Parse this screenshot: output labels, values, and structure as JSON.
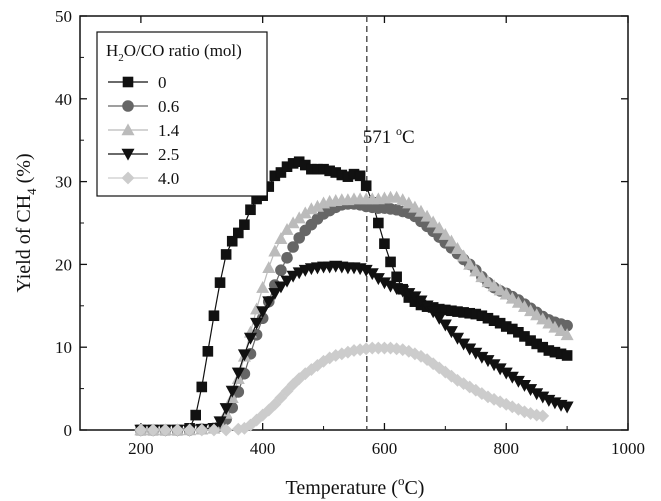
{
  "chart_data": {
    "type": "scatter",
    "xlabel_main": "Temperature (",
    "xlabel_sup": "o",
    "xlabel_tail": "C)",
    "ylabel_main": "Yield of CH",
    "ylabel_sub": "4",
    "ylabel_tail": " (%)",
    "xlim": [
      100,
      1000
    ],
    "ylim": [
      0,
      50
    ],
    "x_ticks": [
      200,
      400,
      600,
      800,
      1000
    ],
    "y_ticks": [
      0,
      10,
      20,
      30,
      40,
      50
    ],
    "grid": false,
    "legend_position": "top-left",
    "legend_title_main": "H",
    "legend_title_sub": "2",
    "legend_title_tail": "O/CO ratio (mol)",
    "annotation": {
      "x": 571,
      "text_main": "571 ",
      "text_sup": "o",
      "text_tail": "C"
    },
    "series": [
      {
        "name": "0",
        "marker": "square",
        "color": "#111111",
        "x": [
          200,
          220,
          240,
          260,
          280,
          290,
          300,
          310,
          320,
          330,
          340,
          350,
          360,
          370,
          380,
          390,
          400,
          410,
          420,
          430,
          440,
          450,
          460,
          470,
          480,
          490,
          500,
          510,
          520,
          530,
          540,
          550,
          560,
          570,
          580,
          590,
          600,
          610,
          620,
          630,
          640,
          650,
          660,
          670,
          680,
          690,
          700,
          710,
          720,
          730,
          740,
          750,
          760,
          770,
          780,
          790,
          800,
          810,
          820,
          830,
          840,
          850,
          860,
          870,
          880,
          890,
          900
        ],
        "y": [
          0,
          0,
          0,
          0,
          0.2,
          1.8,
          5.2,
          9.5,
          13.8,
          17.8,
          21.2,
          22.8,
          23.8,
          24.8,
          26.6,
          27.9,
          28.3,
          29.4,
          30.7,
          31.1,
          31.8,
          32.2,
          32.4,
          32.0,
          31.5,
          31.5,
          31.5,
          31.3,
          31.1,
          30.8,
          30.6,
          30.9,
          30.7,
          29.5,
          27.5,
          25.0,
          22.5,
          20.3,
          18.5,
          17.0,
          16.0,
          15.5,
          15.1,
          14.9,
          14.8,
          14.6,
          14.5,
          14.4,
          14.3,
          14.2,
          14.1,
          14.0,
          13.8,
          13.5,
          13.2,
          12.9,
          12.5,
          12.2,
          11.8,
          11.3,
          10.8,
          10.4,
          10.0,
          9.6,
          9.4,
          9.2,
          9.0
        ]
      },
      {
        "name": "0.6",
        "marker": "circle",
        "color": "#666666",
        "x": [
          200,
          220,
          240,
          260,
          280,
          300,
          320,
          330,
          340,
          350,
          360,
          370,
          380,
          390,
          400,
          410,
          420,
          430,
          440,
          450,
          460,
          470,
          480,
          490,
          500,
          510,
          520,
          530,
          540,
          550,
          560,
          570,
          580,
          590,
          600,
          610,
          620,
          630,
          640,
          650,
          660,
          670,
          680,
          690,
          700,
          710,
          720,
          730,
          740,
          750,
          760,
          770,
          780,
          790,
          800,
          810,
          820,
          830,
          840,
          850,
          860,
          870,
          880,
          890,
          900
        ],
        "y": [
          0,
          0,
          0,
          0,
          0,
          0.1,
          0.2,
          0.5,
          1.3,
          2.7,
          4.6,
          6.8,
          9.2,
          11.5,
          13.5,
          15.5,
          17.5,
          19.3,
          20.8,
          22.1,
          23.2,
          24.1,
          24.8,
          25.5,
          26.1,
          26.5,
          26.9,
          27.2,
          27.3,
          27.3,
          27.2,
          27.0,
          26.9,
          26.8,
          26.8,
          26.7,
          26.6,
          26.4,
          26.2,
          25.8,
          25.2,
          24.6,
          24.0,
          23.3,
          22.6,
          22.0,
          21.3,
          20.6,
          20.0,
          19.3,
          18.5,
          17.8,
          17.2,
          16.8,
          16.5,
          16.1,
          15.7,
          15.2,
          14.7,
          14.2,
          13.7,
          13.3,
          13.0,
          12.8,
          12.6
        ]
      },
      {
        "name": "1.4",
        "marker": "triangle-up",
        "color": "#bbbbbb",
        "x": [
          200,
          220,
          240,
          260,
          280,
          300,
          320,
          330,
          340,
          350,
          360,
          370,
          380,
          390,
          400,
          410,
          420,
          430,
          440,
          450,
          460,
          470,
          480,
          490,
          500,
          510,
          520,
          530,
          540,
          550,
          560,
          570,
          580,
          590,
          600,
          610,
          620,
          630,
          640,
          650,
          660,
          670,
          680,
          690,
          700,
          710,
          720,
          730,
          740,
          750,
          760,
          770,
          780,
          790,
          800,
          810,
          820,
          830,
          840,
          850,
          860,
          870,
          880,
          890,
          900
        ],
        "y": [
          0,
          0,
          0,
          0,
          0,
          0.1,
          0.2,
          0.8,
          2.0,
          3.9,
          6.2,
          8.9,
          11.8,
          14.6,
          17.2,
          19.6,
          21.6,
          23.1,
          24.2,
          25.0,
          25.6,
          26.2,
          26.7,
          27.0,
          27.4,
          27.6,
          27.7,
          27.8,
          27.8,
          27.9,
          27.9,
          27.9,
          27.9,
          27.9,
          28.0,
          28.1,
          28.1,
          27.8,
          27.4,
          26.9,
          26.4,
          25.8,
          25.1,
          24.4,
          23.6,
          22.8,
          21.9,
          21.0,
          20.0,
          19.2,
          18.5,
          17.9,
          17.4,
          16.9,
          16.4,
          15.9,
          15.4,
          14.9,
          14.4,
          13.9,
          13.4,
          12.9,
          12.4,
          12.0,
          11.5
        ]
      },
      {
        "name": "2.5",
        "marker": "triangle-down",
        "color": "#111111",
        "x": [
          200,
          220,
          240,
          260,
          280,
          300,
          320,
          330,
          340,
          350,
          360,
          370,
          380,
          390,
          400,
          410,
          420,
          430,
          440,
          450,
          460,
          470,
          480,
          490,
          500,
          510,
          520,
          530,
          540,
          550,
          560,
          570,
          580,
          590,
          600,
          610,
          620,
          630,
          640,
          650,
          660,
          670,
          680,
          690,
          700,
          710,
          720,
          730,
          740,
          750,
          760,
          770,
          780,
          790,
          800,
          810,
          820,
          830,
          840,
          850,
          860,
          870,
          880,
          890,
          900
        ],
        "y": [
          0,
          0,
          0,
          0,
          0,
          0.1,
          0.2,
          1.0,
          2.6,
          4.7,
          6.9,
          9.1,
          11.1,
          12.9,
          14.3,
          15.5,
          16.5,
          17.3,
          18.0,
          18.6,
          19.0,
          19.3,
          19.5,
          19.6,
          19.7,
          19.7,
          19.8,
          19.7,
          19.6,
          19.6,
          19.5,
          19.3,
          18.9,
          18.3,
          17.8,
          17.4,
          17.1,
          16.8,
          16.5,
          16.1,
          15.6,
          15.0,
          14.3,
          13.5,
          12.7,
          11.9,
          11.1,
          10.4,
          9.8,
          9.3,
          8.8,
          8.4,
          7.9,
          7.4,
          6.9,
          6.4,
          5.9,
          5.4,
          4.9,
          4.4,
          4.0,
          3.6,
          3.3,
          3.0,
          2.8
        ]
      },
      {
        "name": "4.0",
        "marker": "diamond",
        "color": "#cccccc",
        "x": [
          200,
          220,
          240,
          260,
          280,
          300,
          320,
          340,
          360,
          370,
          380,
          390,
          400,
          410,
          420,
          430,
          440,
          450,
          460,
          470,
          480,
          490,
          500,
          510,
          520,
          530,
          540,
          550,
          560,
          570,
          580,
          590,
          600,
          610,
          620,
          630,
          640,
          650,
          660,
          670,
          680,
          690,
          700,
          710,
          720,
          730,
          740,
          750,
          760,
          770,
          780,
          790,
          800,
          810,
          820,
          830,
          840,
          850,
          860
        ],
        "y": [
          0,
          0,
          0,
          0,
          0,
          0,
          0,
          0,
          0.1,
          0.2,
          0.6,
          1.2,
          1.8,
          2.4,
          3.1,
          3.9,
          4.7,
          5.5,
          6.2,
          6.8,
          7.3,
          7.8,
          8.3,
          8.7,
          9.0,
          9.2,
          9.4,
          9.6,
          9.7,
          9.8,
          9.9,
          9.9,
          9.9,
          9.9,
          9.8,
          9.7,
          9.5,
          9.2,
          8.9,
          8.5,
          8.0,
          7.5,
          7.0,
          6.5,
          6.0,
          5.6,
          5.2,
          4.8,
          4.4,
          4.0,
          3.7,
          3.4,
          3.1,
          2.8,
          2.5,
          2.2,
          2.0,
          1.8,
          1.7
        ]
      }
    ]
  }
}
